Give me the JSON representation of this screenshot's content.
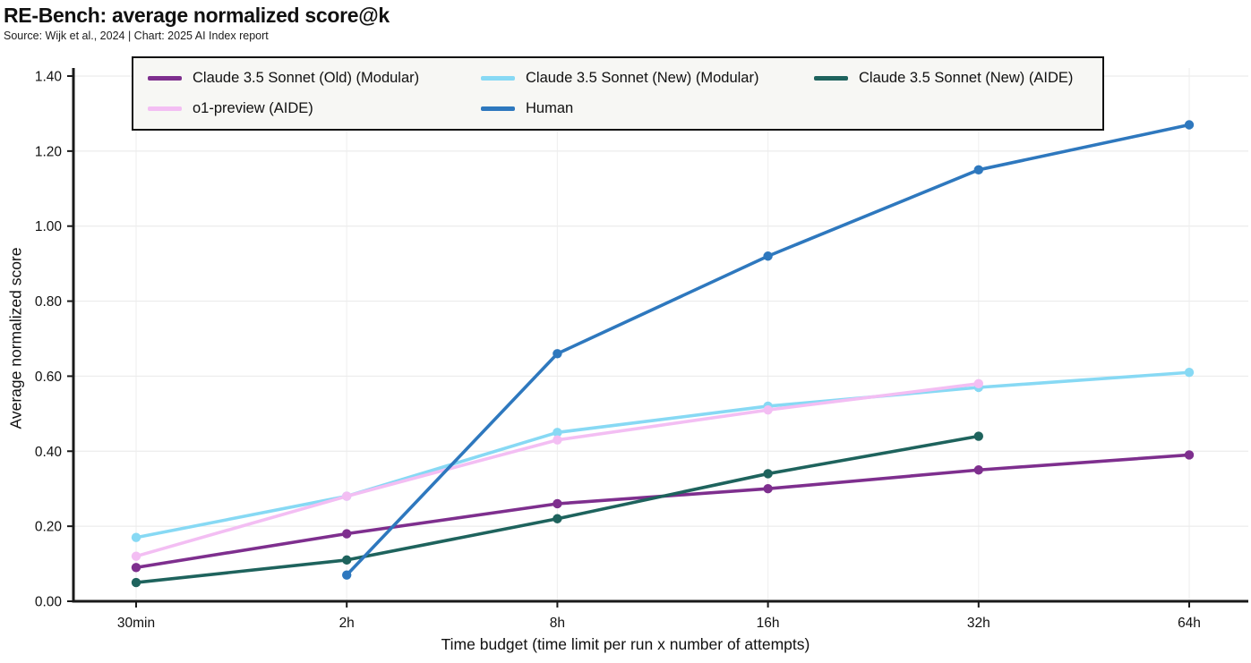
{
  "header": {
    "title": "RE-Bench: average normalized score@k",
    "source": "Source: Wijk et al., 2024 | Chart: 2025 AI Index report"
  },
  "axes": {
    "yticks": [
      "0.00",
      "0.20",
      "0.40",
      "0.60",
      "0.80",
      "1.00",
      "1.20",
      "1.40"
    ]
  },
  "chart_data": {
    "type": "line",
    "title": "RE-Bench: average normalized score@k",
    "xlabel": "Time budget (time limit per run x number of attempts)",
    "ylabel": "Average normalized score",
    "categories": [
      "30min",
      "2h",
      "8h",
      "16h",
      "32h",
      "64h"
    ],
    "ylim": [
      0,
      1.4
    ],
    "ytick_step": 0.2,
    "grid": true,
    "legend_position": "top",
    "marker": "circle",
    "series": [
      {
        "name": "Claude 3.5 Sonnet (Old) (Modular)",
        "color": "#7e2f8e",
        "values": [
          0.09,
          0.18,
          0.26,
          0.3,
          0.35,
          0.39
        ]
      },
      {
        "name": "Claude 3.5 Sonnet (New) (Modular)",
        "color": "#87d9f4",
        "values": [
          0.17,
          0.28,
          0.45,
          0.52,
          0.57,
          0.61
        ]
      },
      {
        "name": "Claude 3.5 Sonnet (New) (AIDE)",
        "color": "#1e635d",
        "values": [
          0.05,
          0.11,
          0.22,
          0.34,
          0.44,
          null
        ]
      },
      {
        "name": "o1-preview (AIDE)",
        "color": "#f3bef3",
        "values": [
          0.12,
          0.28,
          0.43,
          0.51,
          0.58,
          null
        ]
      },
      {
        "name": "Human",
        "color": "#2e78be",
        "values": [
          null,
          0.07,
          0.66,
          0.92,
          1.15,
          1.27
        ]
      }
    ],
    "colors": {
      "axis": "#1a1a1a",
      "h_gridline": "#ececec",
      "v_gridline": "#f1f1f1",
      "legend_bg": "#f7f7f4",
      "legend_border": "#111111"
    }
  }
}
